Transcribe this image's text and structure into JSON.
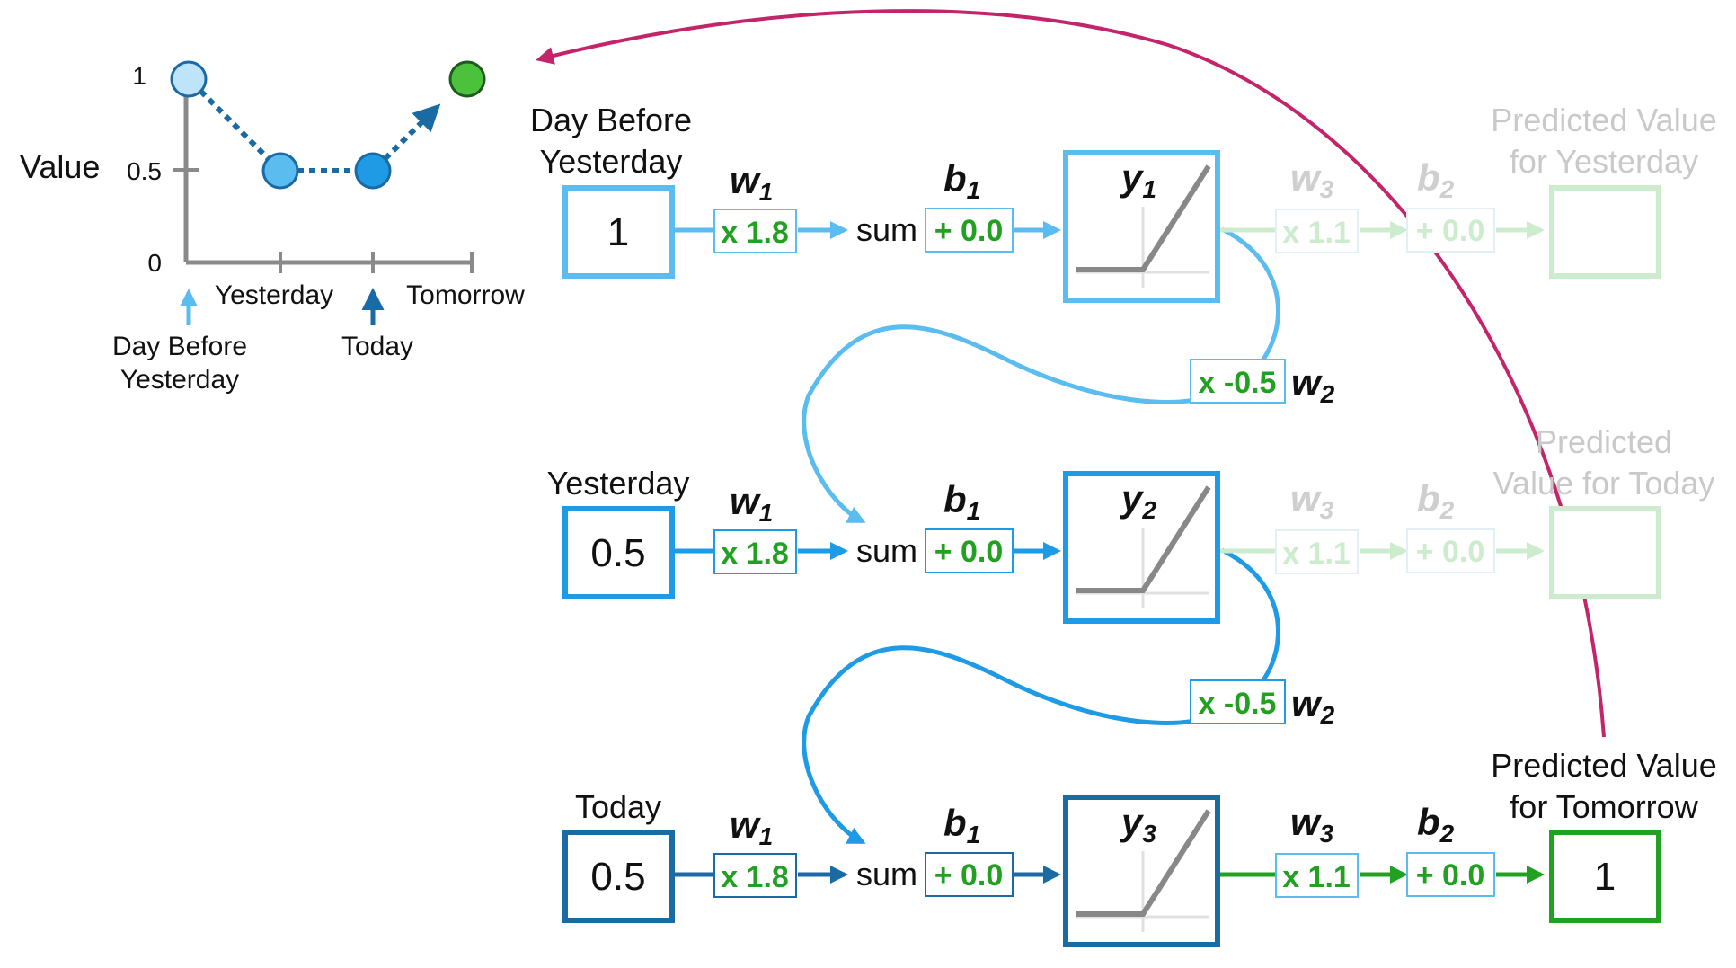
{
  "chart": {
    "ylabel": "Value",
    "y_ticks": [
      "1",
      "0.5",
      "0"
    ],
    "x_ticks": [
      "Yesterday",
      "Tomorrow"
    ],
    "arrow_labels": {
      "day_before_line1": "Day Before",
      "day_before_line2": "Yesterday",
      "today": "Today"
    }
  },
  "chart_data": {
    "type": "line",
    "categories": [
      "Day Before Yesterday",
      "Yesterday",
      "Today",
      "Tomorrow"
    ],
    "values": [
      1,
      0.5,
      0.5,
      1
    ],
    "ylabel": "Value",
    "ylim": [
      0,
      1
    ]
  },
  "rows": [
    {
      "input_label_line1": "Day Before",
      "input_label_line2": "Yesterday",
      "input_value": "1",
      "w1_label": "w",
      "w1_sub": "1",
      "w1_chip": "x 1.8",
      "sum_label": "sum",
      "b1_label": "b",
      "b1_sub": "1",
      "b1_chip": "+ 0.0",
      "y_label": "y",
      "y_sub": "1",
      "w3_label": "w",
      "w3_sub": "3",
      "w3_chip": "x 1.1",
      "b2_label": "b",
      "b2_sub": "2",
      "b2_chip": "+ 0.0",
      "output_label_line1": "Predicted Value",
      "output_label_line2": "for Yesterday",
      "output_value": ""
    },
    {
      "input_label_line1": "Yesterday",
      "input_value": "0.5",
      "w1_label": "w",
      "w1_sub": "1",
      "w1_chip": "x 1.8",
      "sum_label": "sum",
      "b1_label": "b",
      "b1_sub": "1",
      "b1_chip": "+ 0.0",
      "y_label": "y",
      "y_sub": "2",
      "w3_label": "w",
      "w3_sub": "3",
      "w3_chip": "x 1.1",
      "b2_label": "b",
      "b2_sub": "2",
      "b2_chip": "+ 0.0",
      "output_label_line1": "Predicted",
      "output_label_line2": "Value for Today",
      "output_value": ""
    },
    {
      "input_label_line1": "Today",
      "input_value": "0.5",
      "w1_label": "w",
      "w1_sub": "1",
      "w1_chip": "x 1.8",
      "sum_label": "sum",
      "b1_label": "b",
      "b1_sub": "1",
      "b1_chip": "+ 0.0",
      "y_label": "y",
      "y_sub": "3",
      "w3_label": "w",
      "w3_sub": "3",
      "w3_chip": "x 1.1",
      "b2_label": "b",
      "b2_sub": "2",
      "b2_chip": "+ 0.0",
      "output_label_line1": "Predicted Value",
      "output_label_line2": "for Tomorrow",
      "output_value": "1"
    }
  ],
  "feedback": [
    {
      "w2_label": "w",
      "w2_sub": "2",
      "w2_chip": "x -0.5"
    },
    {
      "w2_label": "w",
      "w2_sub": "2",
      "w2_chip": "x -0.5"
    }
  ],
  "colors": {
    "row1": "#5bbcf0",
    "row2": "#1e9be4",
    "row3": "#1a6aa4",
    "green": "#21a021",
    "faded_green": "#cdeccd",
    "magenta": "#c4246a",
    "relu_grey": "#888888"
  }
}
